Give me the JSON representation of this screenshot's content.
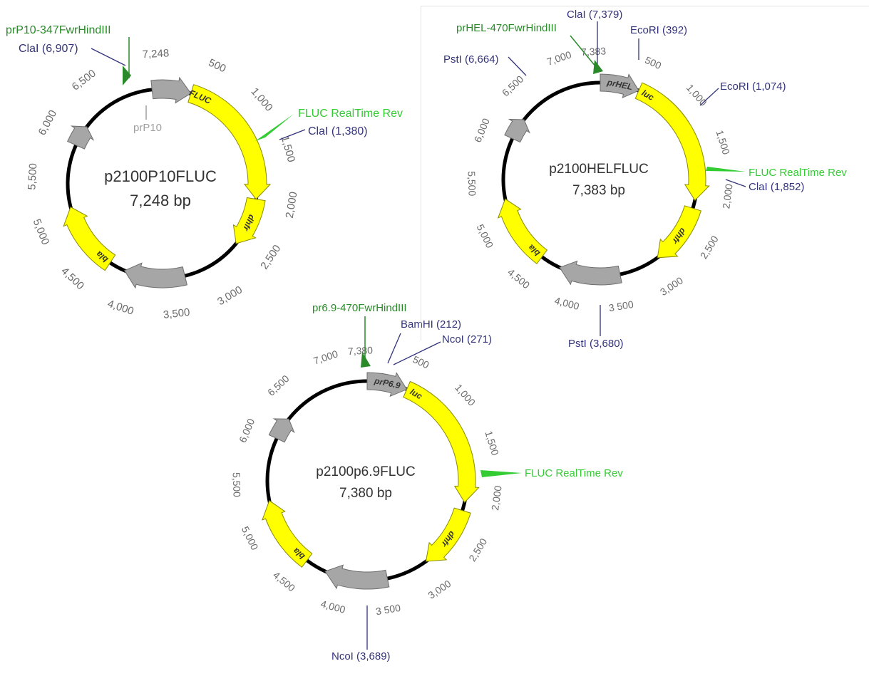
{
  "colors": {
    "backbone": "#000000",
    "yellow": "#ffff00",
    "yellow_edge": "#8a8a00",
    "grey": "#a6a6a6",
    "grey_edge": "#6e6e6e",
    "site": "#33337a",
    "primer": "#2a8a2a",
    "tick": "#6a6a6a",
    "center": "#333333",
    "leader": "#33337a"
  },
  "maps": [
    {
      "id": "p10",
      "name": "p2100P10FLUC",
      "size": "7,248 bp",
      "bp": 7248,
      "features": [
        {
          "label": "prP10",
          "color": "grey",
          "start": 7120,
          "end": 350,
          "show_label": false
        },
        {
          "label": "FLUC",
          "color": "yellow",
          "start": 350,
          "end": 2000,
          "show_label": true
        },
        {
          "label": "dhfr",
          "color": "yellow",
          "start": 2000,
          "end": 2600,
          "show_label": true
        },
        {
          "label": "",
          "color": "grey",
          "start": 3350,
          "end": 4100,
          "show_label": false
        },
        {
          "label": "bla",
          "color": "yellow",
          "start": 4300,
          "end": 5150,
          "show_label": true
        },
        {
          "label": "",
          "color": "grey",
          "start": 5920,
          "end": 6180,
          "show_label": false
        }
      ],
      "ticks": [
        "500",
        "1,000",
        "1,500",
        "2,000",
        "2,500",
        "3,000",
        "3,500",
        "4,000",
        "4,500",
        "5,000",
        "5,500",
        "6,000",
        "6,500",
        "7,248"
      ],
      "sites": [
        {
          "label": "ClaI (6,907)"
        },
        {
          "label": "ClaI (1,380)"
        }
      ],
      "primers": [
        {
          "label": "prP10-347FwrHindIII"
        },
        {
          "label": "FLUC RealTime Rev"
        }
      ],
      "extra_labels": [
        {
          "label": "prP10"
        }
      ]
    },
    {
      "id": "hel",
      "name": "p2100HELFLUC",
      "size": "7,383 bp",
      "bp": 7383,
      "features": [
        {
          "label": "prHEL",
          "color": "grey",
          "start": 0,
          "end": 480,
          "show_label": true
        },
        {
          "label": "luc",
          "color": "yellow",
          "start": 480,
          "end": 2100,
          "show_label": true
        },
        {
          "label": "dhfr",
          "color": "yellow",
          "start": 2200,
          "end": 2950,
          "show_label": true
        },
        {
          "label": "",
          "color": "grey",
          "start": 3450,
          "end": 4200,
          "show_label": false
        },
        {
          "label": "bla",
          "color": "yellow",
          "start": 4450,
          "end": 5300,
          "show_label": true
        },
        {
          "label": "",
          "color": "grey",
          "start": 6050,
          "end": 6320,
          "show_label": false
        }
      ],
      "ticks": [
        "500",
        "1,000",
        "1,500",
        "2,000",
        "2,500",
        "3,000",
        "3 500",
        "4,000",
        "4,500",
        "5,000",
        "5,500",
        "6,000",
        "6,500",
        "7,000",
        "7,383"
      ],
      "sites": [
        {
          "label": "ClaI (7,379)"
        },
        {
          "label": "EcoRI (392)"
        },
        {
          "label": "EcoRI (1,074)"
        },
        {
          "label": "ClaI (1,852)"
        },
        {
          "label": "PstI (6,664)"
        },
        {
          "label": "PstI (3,680)"
        }
      ],
      "primers": [
        {
          "label": "prHEL-470FwrHindIII"
        },
        {
          "label": "FLUC RealTime Rev"
        }
      ],
      "extra_labels": []
    },
    {
      "id": "p69",
      "name": "p2100p6.9FLUC",
      "size": "7,380 bp",
      "bp": 7380,
      "features": [
        {
          "label": "prP6.9",
          "color": "grey",
          "start": 0,
          "end": 480,
          "show_label": true
        },
        {
          "label": "luc",
          "color": "yellow",
          "start": 480,
          "end": 2100,
          "show_label": true
        },
        {
          "label": "dhfr",
          "color": "yellow",
          "start": 2200,
          "end": 2950,
          "show_label": true
        },
        {
          "label": "",
          "color": "grey",
          "start": 3450,
          "end": 4200,
          "show_label": false
        },
        {
          "label": "bla",
          "color": "yellow",
          "start": 4450,
          "end": 5300,
          "show_label": true
        },
        {
          "label": "",
          "color": "grey",
          "start": 6050,
          "end": 6320,
          "show_label": false
        }
      ],
      "ticks": [
        "500",
        "1,000",
        "1,500",
        "2,000",
        "2,500",
        "3,000",
        "3 500",
        "4,000",
        "4,500",
        "5,000",
        "5,500",
        "6,000",
        "6,500",
        "7,000",
        "7,380"
      ],
      "sites": [
        {
          "label": "BamHI (212)"
        },
        {
          "label": "NcoI (271)"
        },
        {
          "label": "NcoI (3,689)"
        }
      ],
      "primers": [
        {
          "label": "pr6.9-470FwrHindIII"
        },
        {
          "label": "FLUC RealTime Rev"
        }
      ],
      "extra_labels": []
    }
  ]
}
